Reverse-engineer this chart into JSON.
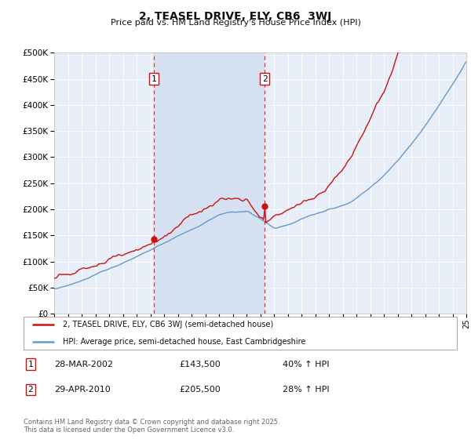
{
  "title": "2, TEASEL DRIVE, ELY, CB6  3WJ",
  "subtitle": "Price paid vs. HM Land Registry's House Price Index (HPI)",
  "sale1_date_num": 2002.24,
  "sale1_price": 143500,
  "sale1_label": "1",
  "sale2_date_num": 2010.33,
  "sale2_price": 205500,
  "sale2_label": "2",
  "legend_line1": "2, TEASEL DRIVE, ELY, CB6 3WJ (semi-detached house)",
  "legend_line2": "HPI: Average price, semi-detached house, East Cambridgeshire",
  "table_row1": [
    "1",
    "28-MAR-2002",
    "£143,500",
    "40% ↑ HPI"
  ],
  "table_row2": [
    "2",
    "29-APR-2010",
    "£205,500",
    "28% ↑ HPI"
  ],
  "footer": "Contains HM Land Registry data © Crown copyright and database right 2025.\nThis data is licensed under the Open Government Licence v3.0.",
  "ylim_max": 500000,
  "ylim_min": 0,
  "xlim_min": 1995,
  "xlim_max": 2025,
  "line_color_red": "#cc1111",
  "line_color_blue": "#6699cc",
  "plot_bg": "#e8eef8",
  "highlight_bg": "#dce8f5",
  "vline_color": "#dd3333",
  "box_color": "#cc1111"
}
